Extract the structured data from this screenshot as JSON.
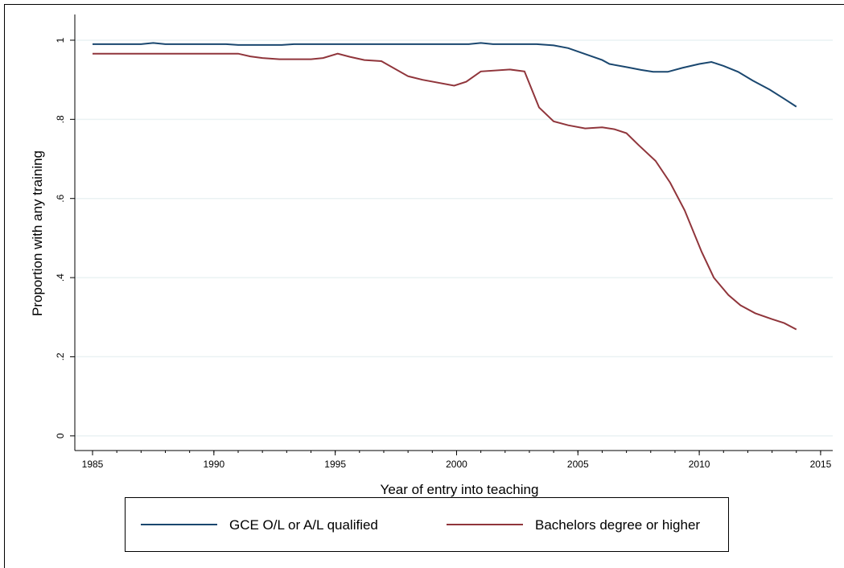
{
  "chart_data": {
    "type": "line",
    "x_label": "Year of entry into teaching",
    "y_label": "Proportion with any training",
    "xlim": [
      1984.27,
      2015.5
    ],
    "xticks": [
      1985,
      1990,
      1995,
      2000,
      2005,
      2010,
      2015
    ],
    "ylim": [
      -0.037,
      1.065
    ],
    "yticks": [
      0,
      {
        "value": 0.2,
        "label": ".2"
      },
      {
        "value": 0.4,
        "label": ".4"
      },
      {
        "value": 0.6,
        "label": ".6"
      },
      {
        "value": 0.8,
        "label": ".8"
      },
      1
    ],
    "grid": true,
    "legend": "bottom",
    "series": [
      {
        "name": "GCE O/L or A/L qualified",
        "color": "#1a476f",
        "x": [
          1985,
          1987,
          1987.5,
          1988,
          1990.5,
          1991,
          1992.8,
          1993.3,
          2000.5,
          2001,
          2001.5,
          2003.3,
          2004,
          2004.6,
          2005.3,
          2006,
          2006.3,
          2007,
          2007.6,
          2008.1,
          2008.7,
          2009.3,
          2010,
          2010.5,
          2011,
          2011.6,
          2012.2,
          2012.9,
          2013.5,
          2014
        ],
        "values": [
          0.99,
          0.99,
          0.993,
          0.99,
          0.99,
          0.988,
          0.988,
          0.99,
          0.99,
          0.993,
          0.99,
          0.99,
          0.987,
          0.98,
          0.965,
          0.95,
          0.94,
          0.932,
          0.925,
          0.92,
          0.92,
          0.93,
          0.94,
          0.945,
          0.935,
          0.92,
          0.898,
          0.875,
          0.852,
          0.832
        ]
      },
      {
        "name": "Bachelors degree or higher",
        "color": "#90353b",
        "x": [
          1985,
          1991,
          1991.5,
          1992,
          1992.7,
          1994,
          1994.5,
          1995.1,
          1995.6,
          1996.2,
          1996.9,
          1998,
          1998.6,
          1999.9,
          2000.4,
          2001,
          2002.2,
          2002.8,
          2003.4,
          2004,
          2004.6,
          2005.3,
          2006,
          2006.5,
          2007,
          2007.5,
          2008.2,
          2008.8,
          2009.4,
          2010.1,
          2010.6,
          2011.2,
          2011.7,
          2012.3,
          2013,
          2013.5,
          2014
        ],
        "values": [
          0.966,
          0.966,
          0.959,
          0.955,
          0.952,
          0.952,
          0.955,
          0.966,
          0.958,
          0.95,
          0.947,
          0.909,
          0.9,
          0.885,
          0.895,
          0.921,
          0.926,
          0.921,
          0.83,
          0.795,
          0.785,
          0.777,
          0.78,
          0.775,
          0.765,
          0.735,
          0.695,
          0.64,
          0.57,
          0.465,
          0.4,
          0.356,
          0.33,
          0.31,
          0.295,
          0.285,
          0.269
        ]
      }
    ]
  }
}
